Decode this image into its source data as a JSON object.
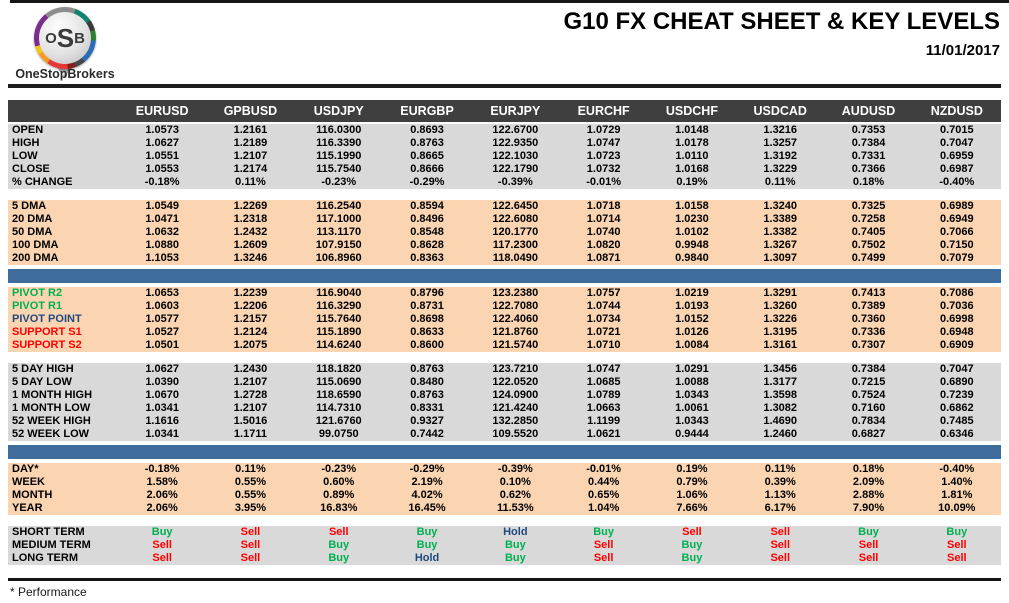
{
  "header": {
    "logo_letters": {
      "o": "O",
      "s": "S",
      "b": "B"
    },
    "brand": "OneStopBrokers",
    "title": "G10 FX CHEAT SHEET & KEY LEVELS",
    "date": "11/01/2017"
  },
  "colors": {
    "header_bg": "#3f3f3f",
    "gray_bg": "#d9d9d9",
    "peach_bg": "#fbd5b1",
    "divider_blue": "#3e6d9c",
    "buy_green": "#00b050",
    "sell_red": "#ff0000",
    "hold_navy": "#1f497d"
  },
  "signal_colors": {
    "Buy": "#00b050",
    "Sell": "#ff0000",
    "Hold": "#1f497d"
  },
  "table": {
    "columns": [
      "EURUSD",
      "GPBUSD",
      "USDJPY",
      "EURGBP",
      "EURJPY",
      "EURCHF",
      "USDCHF",
      "USDCAD",
      "AUDUSD",
      "NZDUSD"
    ],
    "sections": [
      {
        "type": "rows",
        "name": "ohlc",
        "theme": "gray",
        "rows": [
          {
            "label": "OPEN",
            "values": [
              "1.0573",
              "1.2161",
              "116.0300",
              "0.8693",
              "122.6700",
              "1.0729",
              "1.0148",
              "1.3216",
              "0.7353",
              "0.7015"
            ]
          },
          {
            "label": "HIGH",
            "values": [
              "1.0627",
              "1.2189",
              "116.3390",
              "0.8763",
              "122.9350",
              "1.0747",
              "1.0178",
              "1.3257",
              "0.7384",
              "0.7047"
            ]
          },
          {
            "label": "LOW",
            "values": [
              "1.0551",
              "1.2107",
              "115.1990",
              "0.8665",
              "122.1030",
              "1.0723",
              "1.0110",
              "1.3192",
              "0.7331",
              "0.6959"
            ]
          },
          {
            "label": "CLOSE",
            "values": [
              "1.0553",
              "1.2174",
              "115.7540",
              "0.8666",
              "122.1790",
              "1.0732",
              "1.0168",
              "1.3229",
              "0.7366",
              "0.6987"
            ]
          },
          {
            "label": "% CHANGE",
            "values": [
              "-0.18%",
              "0.11%",
              "-0.23%",
              "-0.29%",
              "-0.39%",
              "-0.01%",
              "0.19%",
              "0.11%",
              "0.18%",
              "-0.40%"
            ]
          }
        ]
      },
      {
        "type": "gap"
      },
      {
        "type": "rows",
        "name": "moving-averages",
        "theme": "peach",
        "rows": [
          {
            "label": "5 DMA",
            "values": [
              "1.0549",
              "1.2269",
              "116.2540",
              "0.8594",
              "122.6450",
              "1.0718",
              "1.0158",
              "1.3240",
              "0.7325",
              "0.6989"
            ]
          },
          {
            "label": "20 DMA",
            "values": [
              "1.0471",
              "1.2318",
              "117.1000",
              "0.8496",
              "122.6080",
              "1.0714",
              "1.0230",
              "1.3389",
              "0.7258",
              "0.6949"
            ]
          },
          {
            "label": "50 DMA",
            "values": [
              "1.0632",
              "1.2432",
              "113.1170",
              "0.8548",
              "120.1770",
              "1.0740",
              "1.0102",
              "1.3382",
              "0.7405",
              "0.7066"
            ]
          },
          {
            "label": "100 DMA",
            "values": [
              "1.0880",
              "1.2609",
              "107.9150",
              "0.8628",
              "117.2300",
              "1.0820",
              "0.9948",
              "1.3267",
              "0.7502",
              "0.7150"
            ]
          },
          {
            "label": "200 DMA",
            "values": [
              "1.1053",
              "1.3246",
              "106.8960",
              "0.8363",
              "118.0490",
              "1.0871",
              "0.9840",
              "1.3097",
              "0.7499",
              "0.7079"
            ]
          }
        ]
      },
      {
        "type": "divider"
      },
      {
        "type": "rows",
        "name": "pivots",
        "theme": "peach",
        "rows": [
          {
            "label": "PIVOT R2",
            "label_color": "#00b050",
            "values": [
              "1.0653",
              "1.2239",
              "116.9040",
              "0.8796",
              "123.2380",
              "1.0757",
              "1.0219",
              "1.3291",
              "0.7413",
              "0.7086"
            ]
          },
          {
            "label": "PIVOT R1",
            "label_color": "#00b050",
            "values": [
              "1.0603",
              "1.2206",
              "116.3290",
              "0.8731",
              "122.7080",
              "1.0744",
              "1.0193",
              "1.3260",
              "0.7389",
              "0.7036"
            ]
          },
          {
            "label": "PIVOT POINT",
            "label_color": "#1f497d",
            "values": [
              "1.0577",
              "1.2157",
              "115.7640",
              "0.8698",
              "122.4060",
              "1.0734",
              "1.0152",
              "1.3226",
              "0.7360",
              "0.6998"
            ]
          },
          {
            "label": "SUPPORT S1",
            "label_color": "#ff0000",
            "values": [
              "1.0527",
              "1.2124",
              "115.1890",
              "0.8633",
              "121.8760",
              "1.0721",
              "1.0126",
              "1.3195",
              "0.7336",
              "0.6948"
            ]
          },
          {
            "label": "SUPPORT S2",
            "label_color": "#ff0000",
            "values": [
              "1.0501",
              "1.2075",
              "114.6240",
              "0.8600",
              "121.5740",
              "1.0710",
              "1.0084",
              "1.3161",
              "0.7307",
              "0.6909"
            ]
          }
        ]
      },
      {
        "type": "gap"
      },
      {
        "type": "rows",
        "name": "ranges",
        "theme": "gray",
        "rows": [
          {
            "label": "5 DAY HIGH",
            "values": [
              "1.0627",
              "1.2430",
              "118.1820",
              "0.8763",
              "123.7210",
              "1.0747",
              "1.0291",
              "1.3456",
              "0.7384",
              "0.7047"
            ]
          },
          {
            "label": "5 DAY LOW",
            "values": [
              "1.0390",
              "1.2107",
              "115.0690",
              "0.8480",
              "122.0520",
              "1.0685",
              "1.0088",
              "1.3177",
              "0.7215",
              "0.6890"
            ]
          },
          {
            "label": "1 MONTH HIGH",
            "values": [
              "1.0670",
              "1.2728",
              "118.6590",
              "0.8763",
              "124.0900",
              "1.0789",
              "1.0343",
              "1.3598",
              "0.7524",
              "0.7239"
            ]
          },
          {
            "label": "1 MONTH LOW",
            "values": [
              "1.0341",
              "1.2107",
              "114.7310",
              "0.8331",
              "121.4240",
              "1.0663",
              "1.0061",
              "1.3082",
              "0.7160",
              "0.6862"
            ]
          },
          {
            "label": "52 WEEK HIGH",
            "values": [
              "1.1616",
              "1.5016",
              "121.6760",
              "0.9327",
              "132.2850",
              "1.1199",
              "1.0343",
              "1.4690",
              "0.7834",
              "0.7485"
            ]
          },
          {
            "label": "52 WEEK LOW",
            "values": [
              "1.0341",
              "1.1711",
              "99.0750",
              "0.7442",
              "109.5520",
              "1.0621",
              "0.9444",
              "1.2460",
              "0.6827",
              "0.6346"
            ]
          }
        ]
      },
      {
        "type": "divider"
      },
      {
        "type": "rows",
        "name": "performance",
        "theme": "peach",
        "rows": [
          {
            "label": "DAY*",
            "values": [
              "-0.18%",
              "0.11%",
              "-0.23%",
              "-0.29%",
              "-0.39%",
              "-0.01%",
              "0.19%",
              "0.11%",
              "0.18%",
              "-0.40%"
            ]
          },
          {
            "label": "WEEK",
            "values": [
              "1.58%",
              "0.55%",
              "0.60%",
              "2.19%",
              "0.10%",
              "0.44%",
              "0.79%",
              "0.39%",
              "2.09%",
              "1.40%"
            ]
          },
          {
            "label": "MONTH",
            "values": [
              "2.06%",
              "0.55%",
              "0.89%",
              "4.02%",
              "0.62%",
              "0.65%",
              "1.06%",
              "1.13%",
              "2.88%",
              "1.81%"
            ]
          },
          {
            "label": "YEAR",
            "values": [
              "2.06%",
              "3.95%",
              "16.83%",
              "16.45%",
              "11.53%",
              "1.04%",
              "7.66%",
              "6.17%",
              "7.90%",
              "10.09%"
            ]
          }
        ]
      },
      {
        "type": "gap"
      },
      {
        "type": "rows",
        "name": "signals",
        "theme": "gray",
        "signals": true,
        "rows": [
          {
            "label": "SHORT TERM",
            "values": [
              "Buy",
              "Sell",
              "Sell",
              "Buy",
              "Hold",
              "Buy",
              "Sell",
              "Sell",
              "Buy",
              "Buy"
            ]
          },
          {
            "label": "MEDIUM TERM",
            "values": [
              "Sell",
              "Sell",
              "Buy",
              "Buy",
              "Buy",
              "Sell",
              "Buy",
              "Sell",
              "Sell",
              "Sell"
            ]
          },
          {
            "label": "LONG TERM",
            "values": [
              "Sell",
              "Sell",
              "Buy",
              "Hold",
              "Buy",
              "Sell",
              "Buy",
              "Sell",
              "Sell",
              "Sell"
            ]
          }
        ]
      }
    ]
  },
  "footer": {
    "note": "* Performance"
  }
}
